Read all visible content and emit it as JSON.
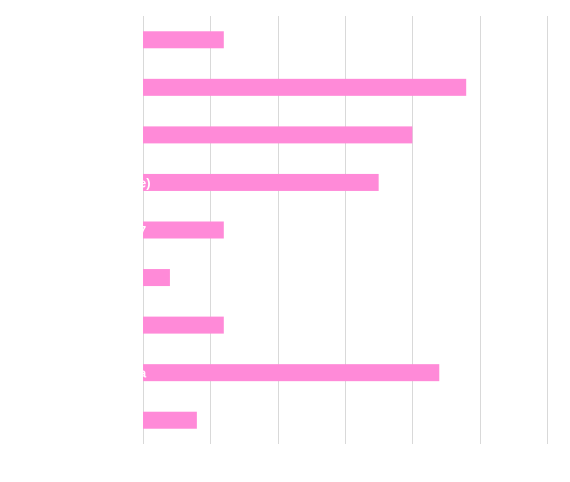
{
  "chart_data": {
    "type": "bar",
    "orientation": "horizontal",
    "categories": [
      "",
      ")",
      "",
      "e)",
      "7",
      "",
      "",
      "a",
      ""
    ],
    "values": [
      3,
      12,
      10,
      8.75,
      3,
      1,
      3,
      11,
      2
    ],
    "xlim": [
      0,
      15
    ],
    "grid": true,
    "bar_color": "#ff8ad8",
    "grid_color": "#d9d9d9",
    "label_color": "#ffffff"
  }
}
